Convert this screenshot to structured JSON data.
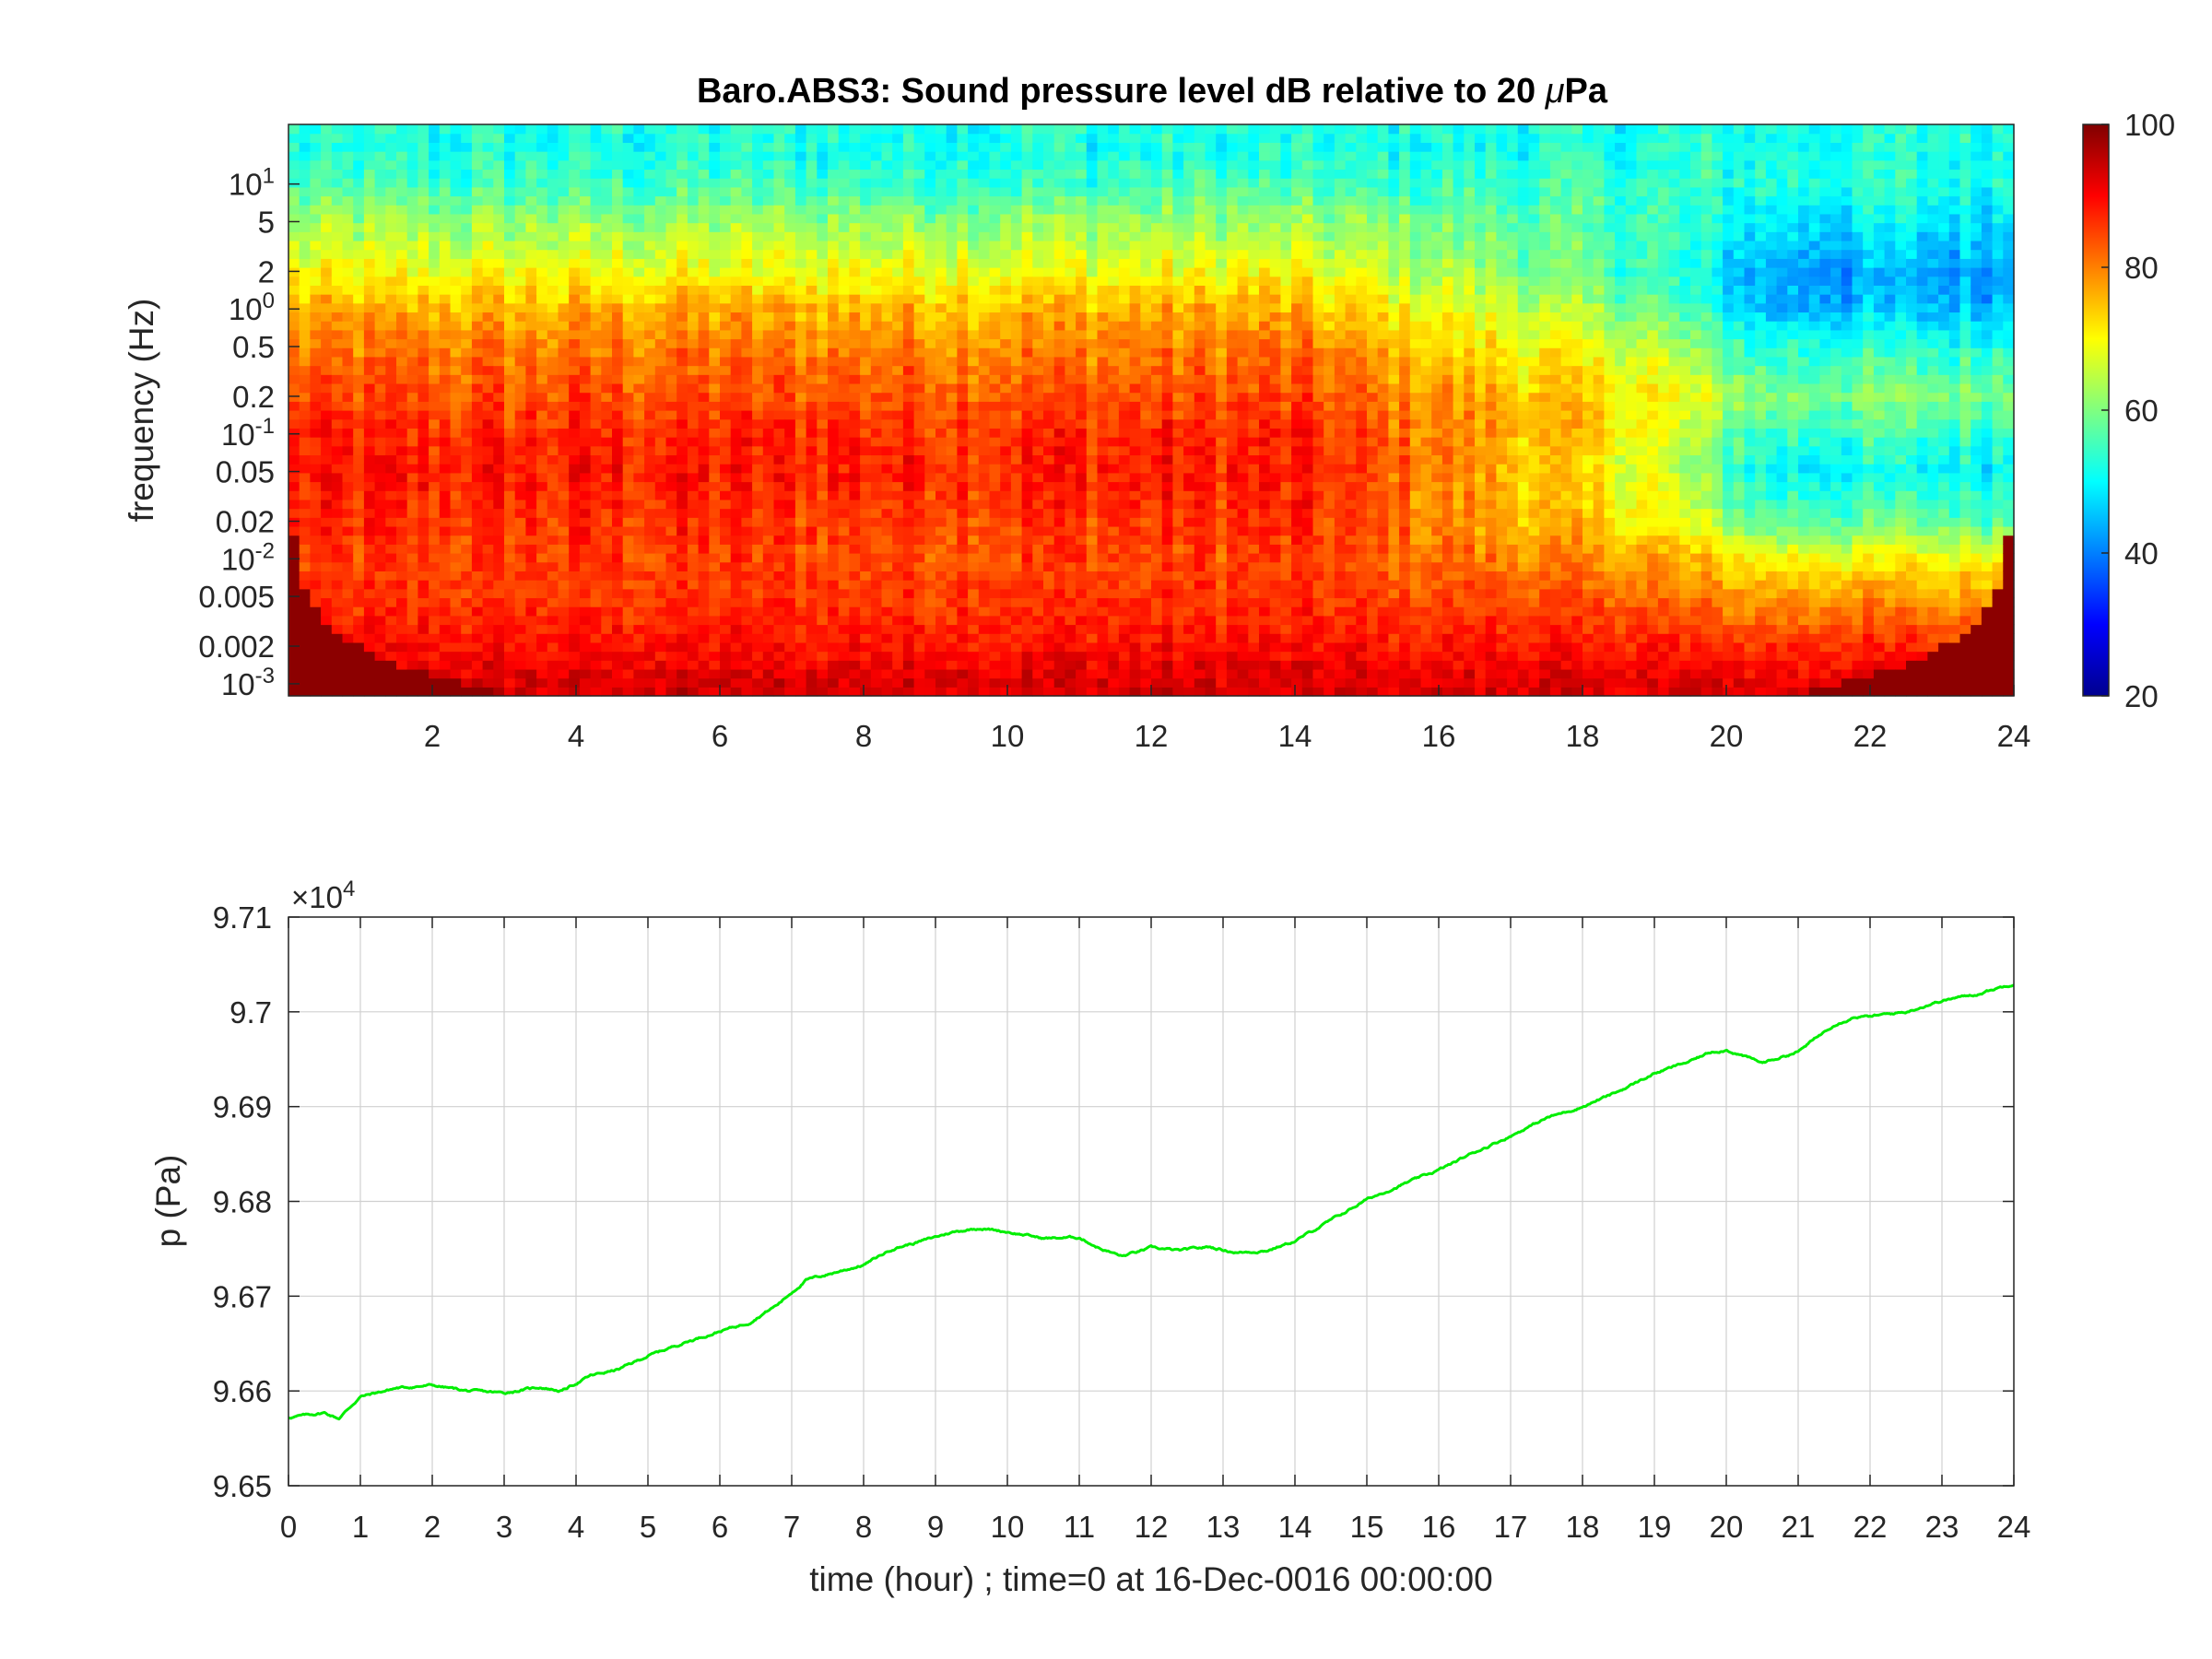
{
  "chart_data": [
    {
      "type": "heatmap",
      "title": "Baro.ABS3: Sound pressure level dB relative to 20 μPa",
      "title_prefix": "Baro.ABS3: Sound pressure level dB relative to 20 ",
      "title_mu": "μ",
      "title_suffix": "Pa",
      "xlabel": "",
      "ylabel": "frequency (Hz)",
      "xlim": [
        0,
        24
      ],
      "ylim": [
        0.0008,
        30
      ],
      "yscale": "log",
      "x_ticks": [
        "2",
        "4",
        "6",
        "8",
        "10",
        "12",
        "14",
        "16",
        "18",
        "20",
        "22",
        "24"
      ],
      "y_ticks": [
        {
          "value": 10,
          "base": "10",
          "exp": "1"
        },
        {
          "value": 5,
          "label": "5"
        },
        {
          "value": 2,
          "label": "2"
        },
        {
          "value": 1,
          "base": "10",
          "exp": "0"
        },
        {
          "value": 0.5,
          "label": "0.5"
        },
        {
          "value": 0.2,
          "label": "0.2"
        },
        {
          "value": 0.1,
          "base": "10",
          "exp": "-1"
        },
        {
          "value": 0.05,
          "label": "0.05"
        },
        {
          "value": 0.02,
          "label": "0.02"
        },
        {
          "value": 0.01,
          "base": "10",
          "exp": "-2"
        },
        {
          "value": 0.005,
          "label": "0.005"
        },
        {
          "value": 0.002,
          "label": "0.002"
        },
        {
          "value": 0.001,
          "base": "10",
          "exp": "-3"
        }
      ],
      "colorbar": {
        "colormap": "jet",
        "clim": [
          20,
          100
        ],
        "ticks": [
          "100",
          "80",
          "60",
          "40",
          "20"
        ],
        "units": "dB"
      },
      "level_profile": {
        "frequency_hz": [
          0.001,
          0.002,
          0.005,
          0.01,
          0.02,
          0.05,
          0.1,
          0.2,
          0.5,
          1,
          2,
          5,
          10,
          20
        ],
        "early_day_db": [
          93,
          89,
          86,
          85,
          86,
          88,
          87,
          84,
          80,
          76,
          69,
          62,
          55,
          52
        ],
        "late_day_db": [
          92,
          87,
          78,
          70,
          58,
          50,
          55,
          60,
          53,
          45,
          43,
          49,
          53,
          52
        ]
      },
      "grid": false
    },
    {
      "type": "line",
      "title": "",
      "xlabel": "time (hour) ; time=0 at 16-Dec-0016 00:00:00",
      "ylabel": "p (Pa)",
      "xlim": [
        0,
        24
      ],
      "ylim": [
        96500,
        97100
      ],
      "exponent_base": "×10",
      "exponent_power": "4",
      "x_ticks": [
        "0",
        "1",
        "2",
        "3",
        "4",
        "5",
        "6",
        "7",
        "8",
        "9",
        "10",
        "11",
        "12",
        "13",
        "14",
        "15",
        "16",
        "17",
        "18",
        "19",
        "20",
        "21",
        "22",
        "23",
        "24"
      ],
      "y_ticks": [
        "9.65",
        "9.66",
        "9.67",
        "9.68",
        "9.69",
        "9.7",
        "9.71"
      ],
      "grid": true,
      "color": "#00ee00",
      "series": [
        {
          "x": [
            0,
            0.5,
            0.7,
            1,
            1.5,
            2,
            2.5,
            3,
            3.5,
            3.8,
            4.2,
            4.6,
            5,
            5.5,
            6,
            6.4,
            6.8,
            7.2,
            7.6,
            8,
            8.4,
            8.8,
            9.2,
            9.6,
            10,
            10.5,
            11,
            11.3,
            11.6,
            12,
            12.4,
            12.8,
            13.2,
            13.6,
            14,
            14.5,
            15,
            15.5,
            16,
            16.5,
            17,
            17.5,
            18,
            18.5,
            19,
            19.5,
            19.8,
            20,
            20.5,
            21,
            21.5,
            21.8,
            22,
            22.5,
            23,
            23.5,
            24
          ],
          "y": [
            96572,
            96577,
            96571,
            96594,
            96603,
            96606,
            96600,
            96598,
            96604,
            96600,
            96616,
            96623,
            96637,
            96651,
            96663,
            96672,
            96691,
            96717,
            96725,
            96733,
            96750,
            96758,
            96767,
            96772,
            96768,
            96761,
            96762,
            96750,
            96742,
            96751,
            96748,
            96752,
            96746,
            96748,
            96758,
            96780,
            96802,
            96818,
            96833,
            96852,
            96869,
            96888,
            96900,
            96916,
            96935,
            96948,
            96958,
            96960,
            96946,
            96958,
            96987,
            96995,
            96995,
            97000,
            97012,
            97019,
            97030
          ]
        }
      ]
    }
  ]
}
